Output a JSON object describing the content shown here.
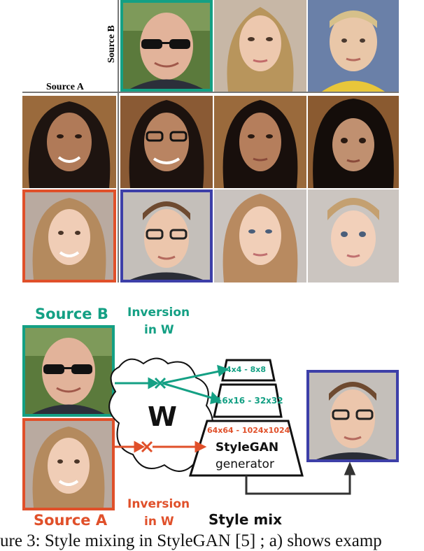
{
  "grid": {
    "source_a_label": "Source A",
    "source_b_label": "Source B"
  },
  "diagram": {
    "source_b_label": "Source B",
    "source_a_label": "Source A",
    "inversion_top": [
      "Inversion",
      "in W"
    ],
    "inversion_bottom": [
      "Inversion",
      "in W"
    ],
    "latent_label": "W",
    "layer_top": "4x4 - 8x8",
    "layer_mid": "16x16 - 32x32",
    "layer_bottom": "64x64 - 1024x1024",
    "generator_name": "StyleGAN",
    "generator_sub": "generator",
    "result_label": "Style mix"
  },
  "caption": {
    "text": "ure 3: Style mixing in StyleGAN [5] ; a) shows examp"
  },
  "colors": {
    "source_b": "#14a084",
    "source_a": "#e0502a",
    "mix": "#3d3fa8"
  }
}
